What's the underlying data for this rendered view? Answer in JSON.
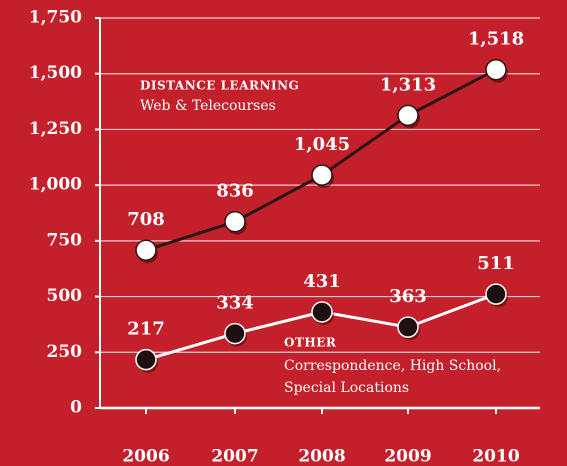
{
  "chart_data": {
    "type": "line",
    "categories": [
      "2006",
      "2007",
      "2008",
      "2009",
      "2010"
    ],
    "series": [
      {
        "name": "DISTANCE LEARNING",
        "color": "#2b1414",
        "marker_color": "#ffffff",
        "values": [
          708,
          836,
          1045,
          1313,
          1518
        ],
        "value_labels": [
          "708",
          "836",
          "1,045",
          "1,313",
          "1,518"
        ]
      },
      {
        "name": "OTHER",
        "color": "#ffffff",
        "marker_color": "#1e1010",
        "values": [
          217,
          334,
          431,
          363,
          511
        ],
        "value_labels": [
          "217",
          "334",
          "431",
          "363",
          "511"
        ]
      }
    ],
    "annotations": [
      "Web & Telecourses",
      "Correspondence, High School,",
      "Special Locations"
    ],
    "ylim": [
      0,
      1750
    ],
    "yticks": [
      0,
      250,
      500,
      750,
      {
        "value": 1000,
        "label": "1,000"
      },
      {
        "value": 1250,
        "label": "1,250"
      },
      {
        "value": 1500,
        "label": "1,500"
      },
      {
        "value": 1750,
        "label": "1,750"
      }
    ],
    "grid": true
  }
}
